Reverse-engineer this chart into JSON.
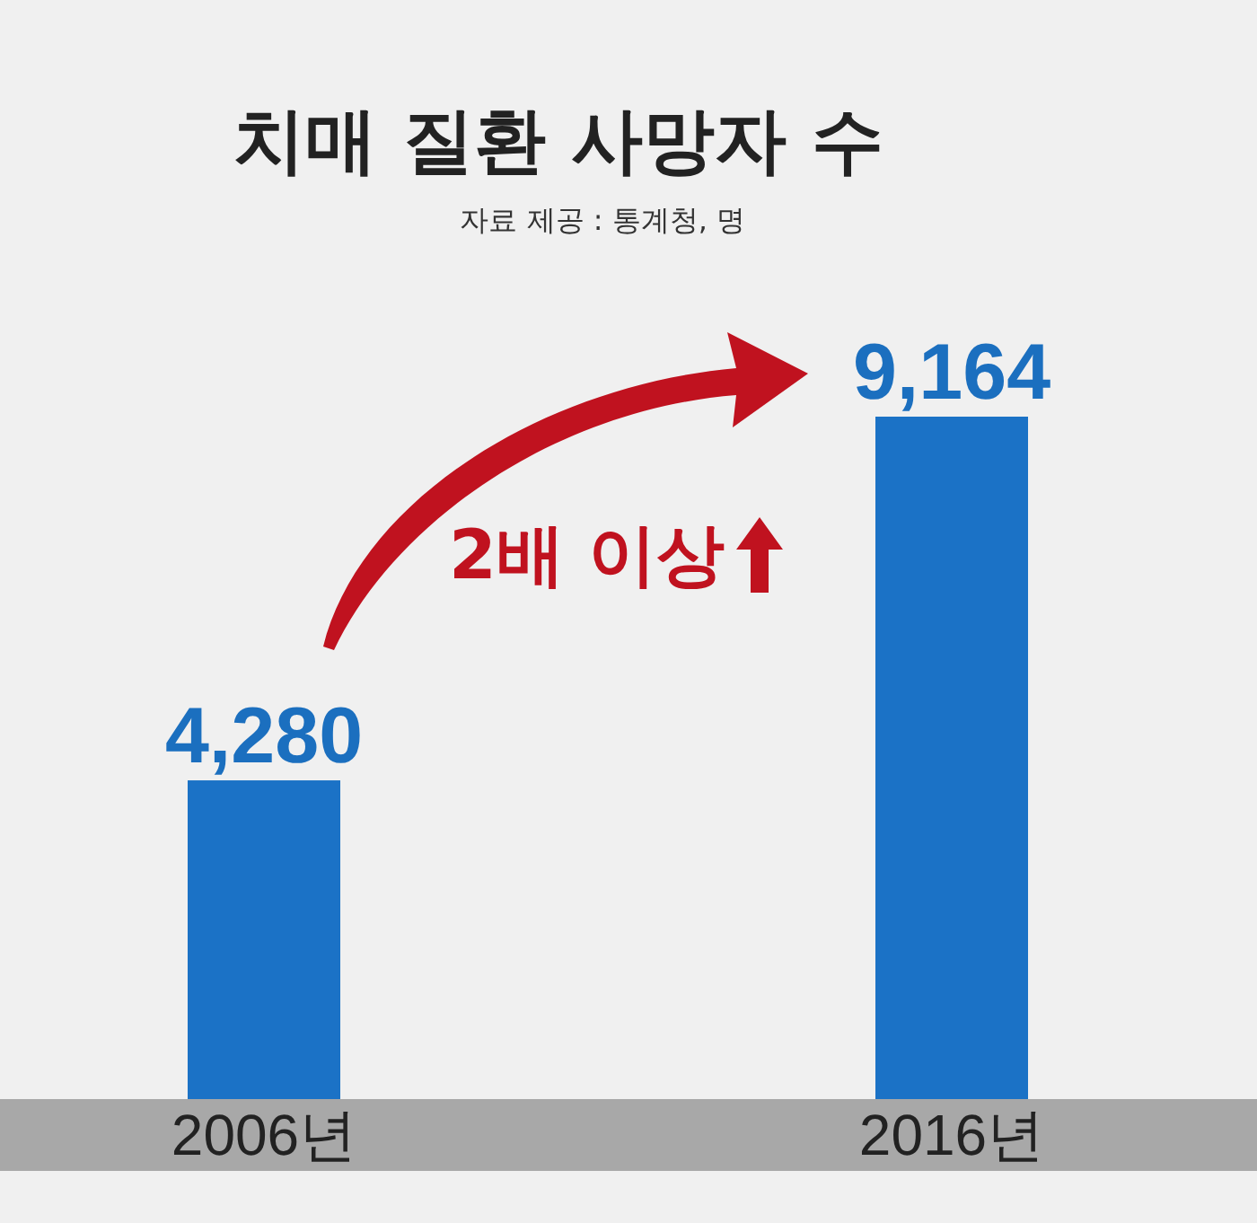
{
  "chart_data": {
    "type": "bar",
    "title": "치매 질환 사망자 수",
    "subtitle": "자료 제공 : 통계청, 명",
    "categories": [
      "2006년",
      "2016년"
    ],
    "values": [
      4280,
      9164
    ],
    "color": "#1b72c6",
    "value_labels": [
      "4,280",
      "9,164"
    ],
    "annotations": [
      "2배 이상"
    ]
  }
}
